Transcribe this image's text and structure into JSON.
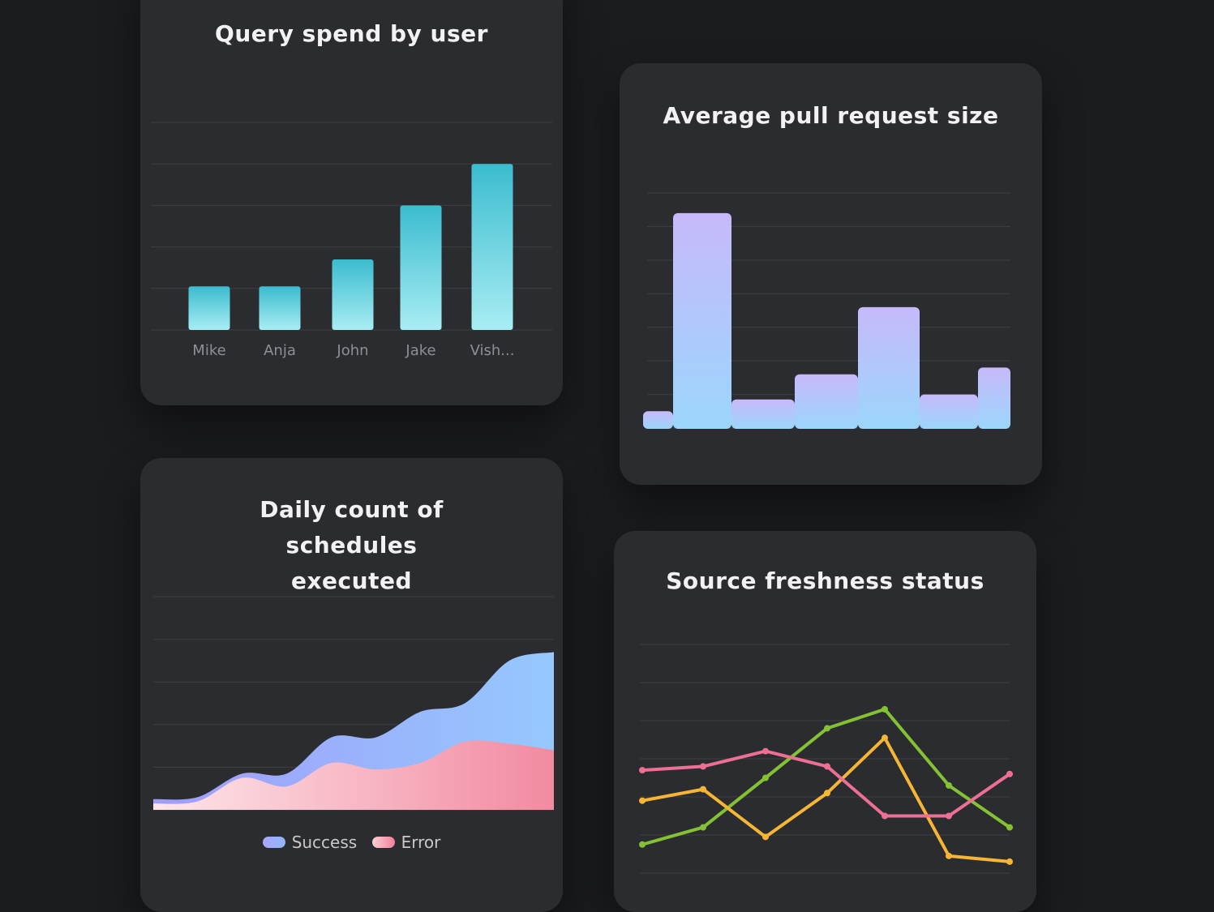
{
  "chart_data": [
    {
      "id": "query-spend",
      "type": "bar",
      "title": "Query spend by user",
      "categories": [
        "Mike",
        "Anja",
        "John",
        "Jake",
        "Vish..."
      ],
      "values": [
        1.05,
        1.05,
        1.7,
        3.0,
        4.0
      ],
      "ylim": [
        0,
        5
      ],
      "grid": true,
      "colors": {
        "top": "#3bbccf",
        "bottom": "#a8edf3"
      }
    },
    {
      "id": "pr-size",
      "type": "bar",
      "title": "Average pull request size",
      "values": [
        0.5,
        6.4,
        0.85,
        1.6,
        3.6,
        1.0,
        1.8
      ],
      "ylim": [
        0,
        7
      ],
      "grid": true,
      "colors": {
        "top": "#c7b9fb",
        "bottom": "#9bd6fc"
      }
    },
    {
      "id": "schedules",
      "type": "area",
      "title": "Daily count of schedules executed",
      "x": [
        0,
        1,
        2,
        3,
        4,
        5,
        6,
        7,
        8,
        9
      ],
      "series": [
        {
          "name": "Success",
          "values": [
            0.25,
            0.3,
            0.85,
            0.85,
            1.7,
            1.7,
            2.3,
            2.5,
            3.5,
            3.7
          ],
          "color": "#8fa4fb"
        },
        {
          "name": "Error",
          "values": [
            0.15,
            0.2,
            0.75,
            0.55,
            1.1,
            0.95,
            1.1,
            1.6,
            1.55,
            1.4
          ],
          "color": "#f28ea2"
        }
      ],
      "ylim": [
        0,
        5
      ],
      "grid": true,
      "legend": "bottom"
    },
    {
      "id": "freshness",
      "type": "line",
      "title": "Source freshness status",
      "x": [
        0,
        1,
        2,
        3,
        4,
        5,
        6
      ],
      "series": [
        {
          "color": "#84c234",
          "values": [
            0.75,
            1.2,
            2.5,
            3.8,
            4.3,
            2.3,
            1.2
          ]
        },
        {
          "color": "#f6b634",
          "values": [
            1.9,
            2.2,
            0.95,
            2.1,
            3.55,
            0.45,
            0.3
          ]
        },
        {
          "color": "#ee6f94",
          "values": [
            2.7,
            2.8,
            3.2,
            2.8,
            1.5,
            1.5,
            2.6
          ]
        }
      ],
      "ylim": [
        0,
        6
      ],
      "grid": true
    }
  ]
}
